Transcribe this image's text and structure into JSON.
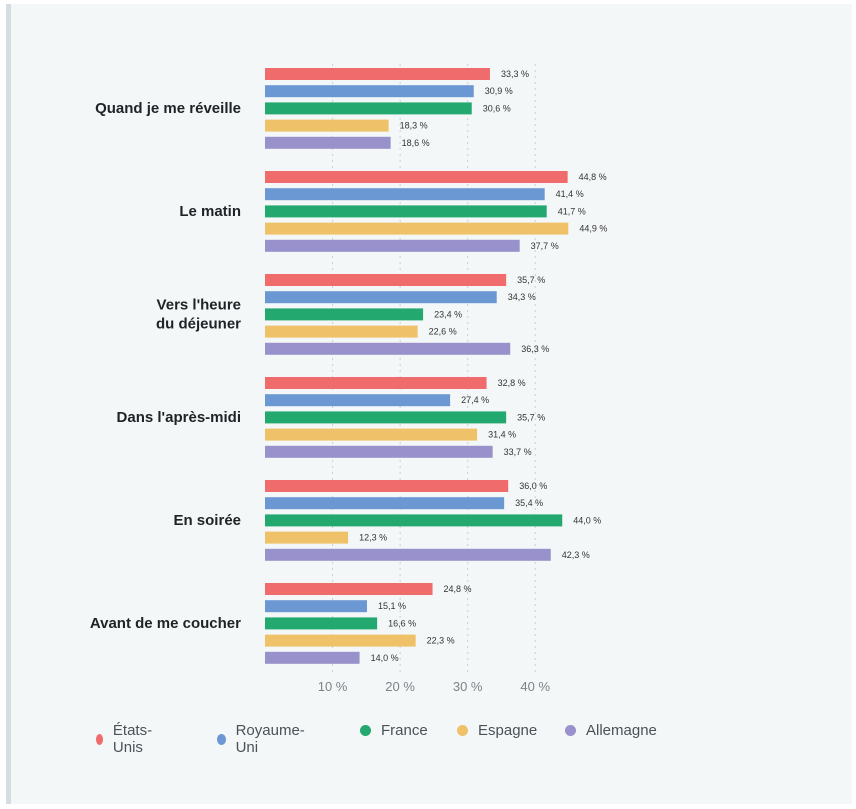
{
  "chart_data": {
    "type": "bar",
    "orientation": "horizontal",
    "categories": [
      [
        "Quand je me réveille"
      ],
      [
        "Le matin"
      ],
      [
        "Vers l'heure",
        "du déjeuner"
      ],
      [
        "Dans l'après-midi"
      ],
      [
        "En soirée"
      ],
      [
        "Avant de me coucher"
      ]
    ],
    "series": [
      {
        "name": "États-Unis",
        "color": "#f06c6c",
        "values": [
          33.3,
          44.8,
          35.7,
          32.8,
          36.0,
          24.8
        ],
        "labels": [
          "33,3 %",
          "44,8 %",
          "35,7 %",
          "32,8 %",
          "36,0 %",
          "24,8 %"
        ]
      },
      {
        "name": "Royaume-Uni",
        "color": "#6b97d3",
        "values": [
          30.9,
          41.4,
          34.3,
          27.4,
          35.4,
          15.1
        ],
        "labels": [
          "30,9 %",
          "41,4 %",
          "34,3 %",
          "27,4 %",
          "35,4 %",
          "15,1 %"
        ]
      },
      {
        "name": "France",
        "color": "#23a86f",
        "values": [
          30.6,
          41.7,
          23.4,
          35.7,
          44.0,
          16.6
        ],
        "labels": [
          "30,6 %",
          "41,7 %",
          "23,4 %",
          "35,7 %",
          "44,0 %",
          "16,6 %"
        ]
      },
      {
        "name": "Espagne",
        "color": "#efc26a",
        "values": [
          18.3,
          44.9,
          22.6,
          31.4,
          12.3,
          22.3
        ],
        "labels": [
          "18,3 %",
          "44,9 %",
          "22,6 %",
          "31,4 %",
          "12,3 %",
          "22,3 %"
        ]
      },
      {
        "name": "Allemagne",
        "color": "#9991cb",
        "values": [
          18.6,
          37.7,
          36.3,
          33.7,
          42.3,
          14.0
        ],
        "labels": [
          "18,6 %",
          "37,7 %",
          "36,3 %",
          "33,7 %",
          "42,3 %",
          "14,0 %"
        ]
      }
    ],
    "xticks": [
      10,
      20,
      30,
      40
    ],
    "xtick_labels": [
      "10 %",
      "20 %",
      "30 %",
      "40 %"
    ],
    "xlim": [
      0,
      45
    ],
    "grid": "vertical dashed",
    "legend": "bottom"
  }
}
